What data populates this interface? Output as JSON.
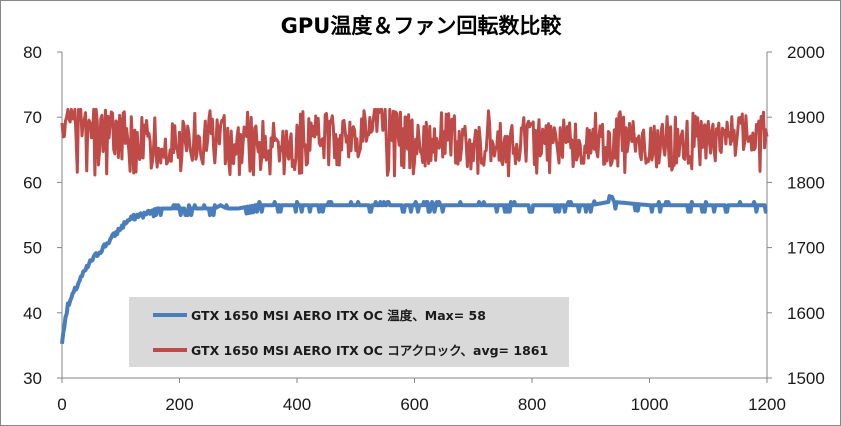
{
  "chart_data": {
    "type": "line",
    "title": "GPU温度＆ファン回転数比較",
    "xlabel": "",
    "ylabel": "",
    "y2label": "",
    "xlim": [
      0,
      1200
    ],
    "ylim": [
      30,
      80
    ],
    "y2lim": [
      1500,
      2000
    ],
    "x_ticks": [
      0,
      200,
      400,
      600,
      800,
      1000,
      1200
    ],
    "y_ticks": [
      30,
      40,
      50,
      60,
      70,
      80
    ],
    "y2_ticks": [
      1500,
      1600,
      1700,
      1800,
      1900,
      2000
    ],
    "grid": false,
    "legend_position": "bottom-left",
    "series": [
      {
        "name": "GTX 1650  MSI AERO ITX OC 温度、Max= 58",
        "axis": "left",
        "color": "#4a7ebb",
        "x": [
          0,
          2,
          5,
          10,
          15,
          20,
          25,
          30,
          40,
          50,
          60,
          70,
          80,
          90,
          100,
          110,
          120,
          130,
          140,
          150,
          160,
          170,
          180,
          190,
          200,
          220,
          240,
          260,
          270,
          280,
          300,
          330,
          360,
          400,
          450,
          500,
          550,
          600,
          650,
          700,
          750,
          800,
          850,
          900,
          930,
          935,
          940,
          1000,
          1050,
          1100,
          1150,
          1200
        ],
        "values": [
          35,
          37,
          39,
          41,
          42,
          43,
          44,
          45,
          46.5,
          48,
          49,
          50,
          51,
          52,
          53,
          54,
          54.5,
          55,
          55,
          55.5,
          56,
          56,
          56,
          56,
          56,
          56,
          56,
          56,
          56.5,
          56,
          56,
          56.5,
          56.5,
          56.5,
          56.5,
          56.5,
          56.5,
          56.5,
          56.5,
          56.5,
          56.5,
          56.5,
          56.5,
          56.5,
          57,
          58,
          57,
          56.5,
          56.5,
          56.5,
          56.5,
          56.5
        ]
      },
      {
        "name": "GTX 1650  MSI AERO ITX OC コアクロック、avg= 1861",
        "axis": "right",
        "color": "#be4b48",
        "x": [
          0,
          100,
          200,
          300,
          400,
          500,
          540,
          600,
          700,
          800,
          900,
          1000,
          1100,
          1200
        ],
        "values": [
          1905,
          1870,
          1860,
          1865,
          1858,
          1862,
          1910,
          1860,
          1858,
          1862,
          1860,
          1858,
          1860,
          1885
        ],
        "range": [
          1810,
          1910
        ]
      }
    ]
  },
  "legend": {
    "items": [
      {
        "label": "GTX 1650  MSI AERO ITX OC 温度、Max= 58",
        "color": "#4a7ebb"
      },
      {
        "label": "GTX 1650  MSI AERO ITX OC コアクロック、avg= 1861",
        "color": "#be4b48"
      }
    ]
  }
}
